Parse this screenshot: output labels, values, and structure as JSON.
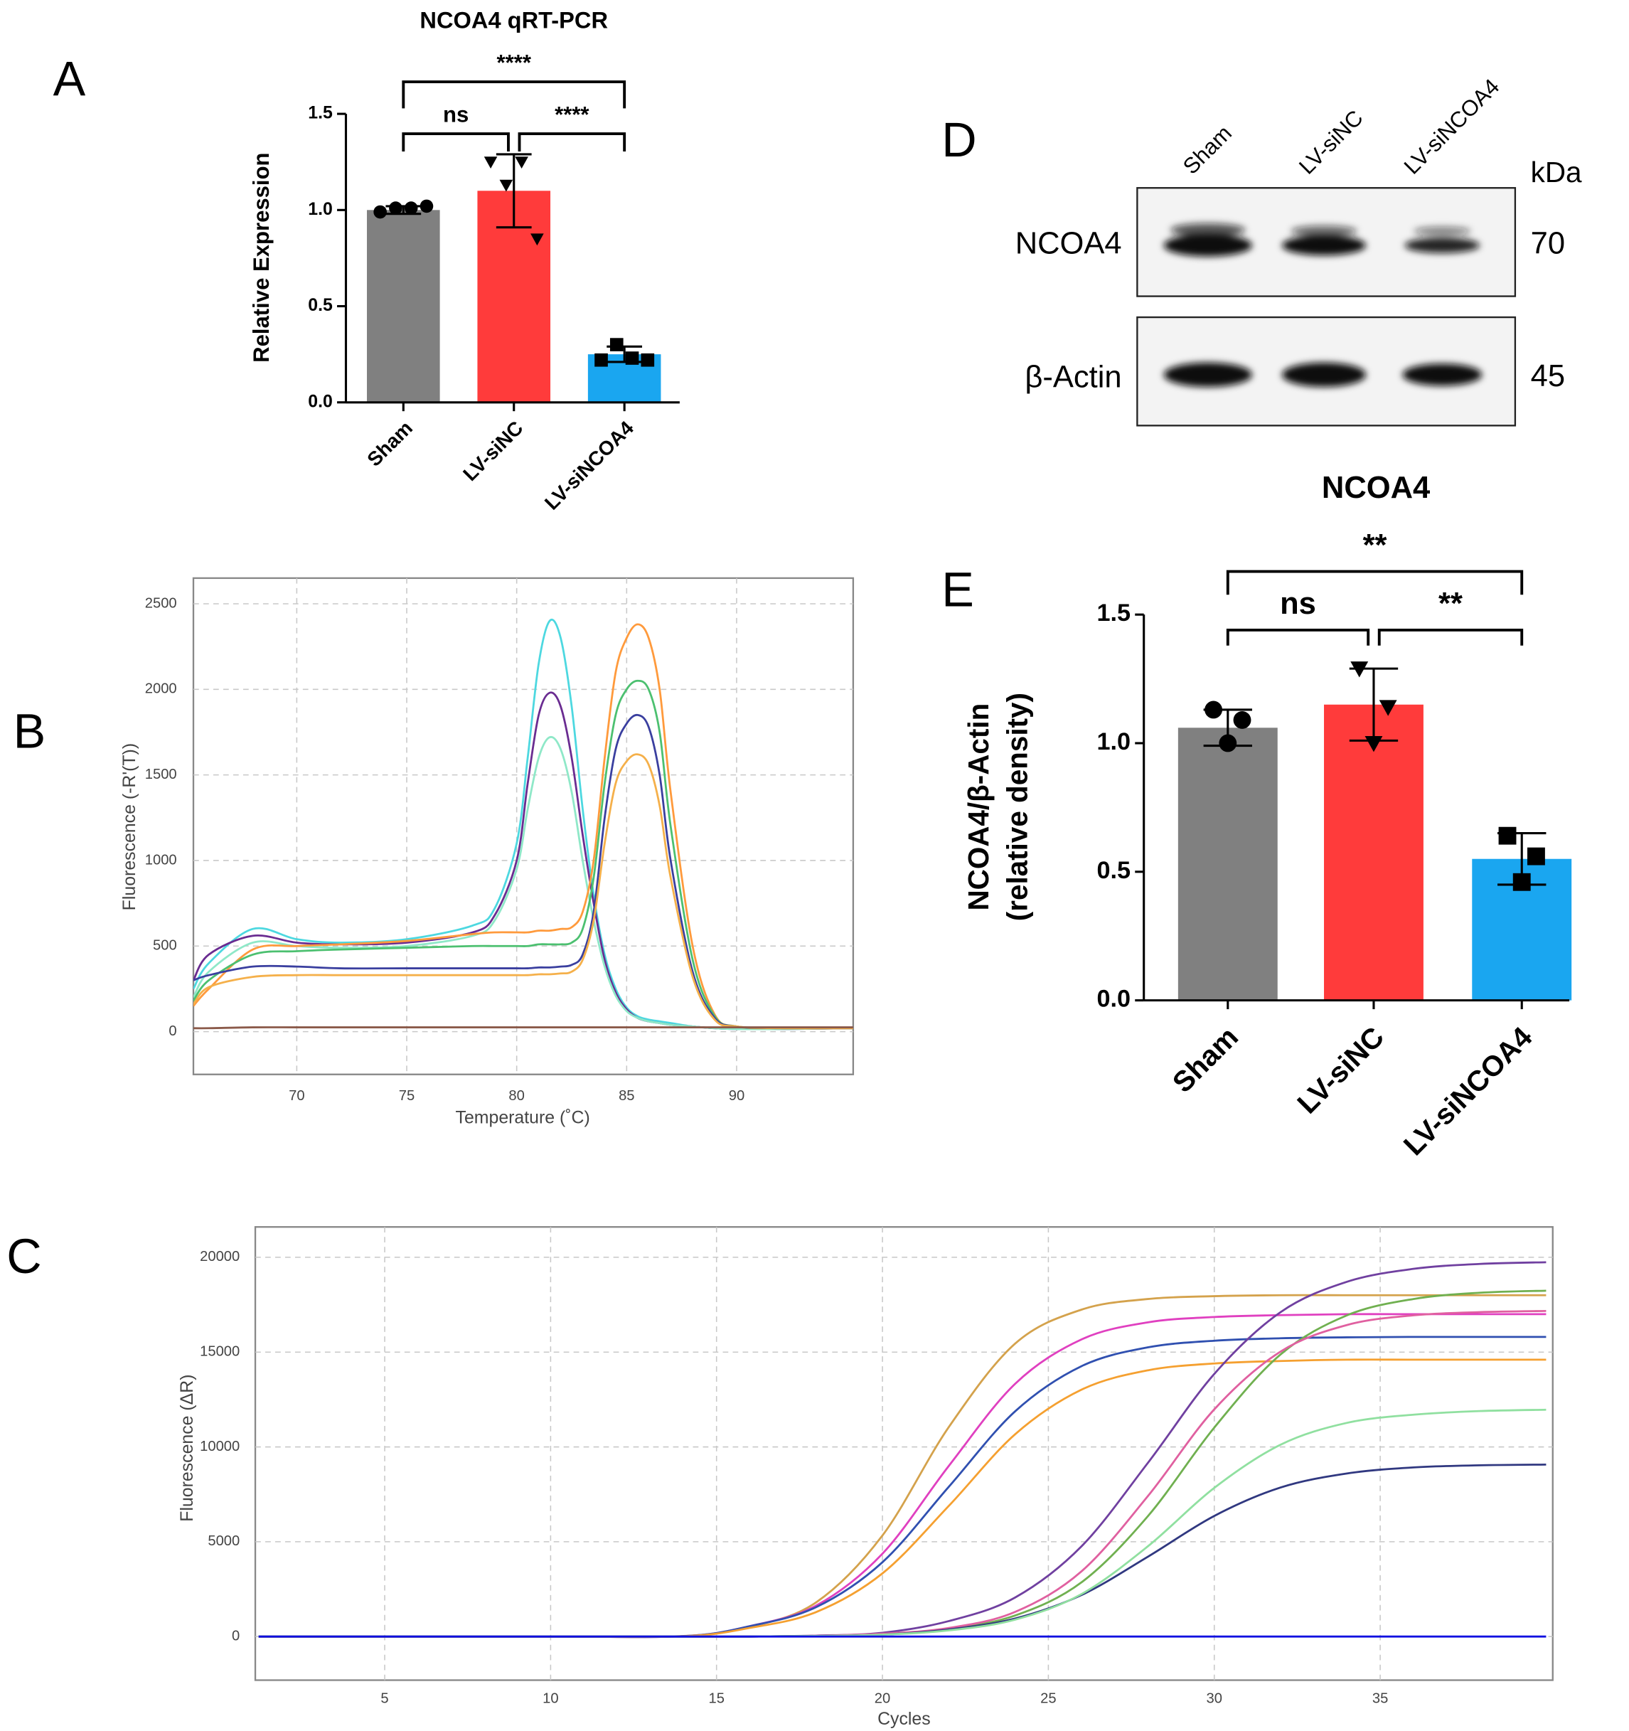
{
  "chart_data": [
    {
      "label": "A",
      "type": "bar",
      "title": "NCOA4 qRT-PCR",
      "ylabel": [
        "Relative Expression"
      ],
      "categories": [
        "Sham",
        "LV-siNC",
        "LV-siNCOA4"
      ],
      "values": [
        1.0,
        1.1,
        0.25
      ],
      "errors": [
        0.02,
        0.19,
        0.04
      ],
      "points": [
        [
          0.99,
          1.01,
          1.01,
          1.02
        ],
        [
          1.25,
          1.13,
          1.25,
          0.85
        ],
        [
          0.22,
          0.3,
          0.23,
          0.22
        ]
      ],
      "colors": [
        "#808080",
        "#ff3b3b",
        "#1aa6f0"
      ],
      "markers": [
        "circle",
        "triangle-down",
        "square"
      ],
      "ylim": [
        0,
        1.5
      ],
      "yticks": [
        {
          "value": 0,
          "label": "0.0"
        },
        {
          "value": 0.5,
          "label": "0.5"
        },
        {
          "value": 1,
          "label": "1.0"
        },
        {
          "value": 1.5,
          "label": "1.5"
        }
      ],
      "brackets": [
        {
          "text": "ns",
          "from": 0,
          "to": 1
        },
        {
          "text": "****",
          "from": 1,
          "to": 2
        },
        {
          "text": "****",
          "from": 0,
          "to": 2
        }
      ]
    },
    {
      "label": "B",
      "type": "line",
      "xlabel": "Temperature (˚C)",
      "ylabel": "Fluorescence (-R'(T))",
      "x": [
        65.3,
        66,
        68,
        70,
        72,
        75,
        78,
        79,
        80,
        80.5,
        81,
        81.5,
        82,
        82.5,
        83,
        83.5,
        84,
        84.5,
        85,
        85.5,
        86,
        86.5,
        87,
        88,
        89,
        90,
        92,
        95.3
      ],
      "series": [
        {
          "color": "#4dd8e0",
          "values": [
            250,
            400,
            600,
            540,
            520,
            540,
            620,
            720,
            1100,
            1600,
            2150,
            2400,
            2300,
            1900,
            1300,
            800,
            450,
            250,
            140,
            90,
            70,
            60,
            50,
            30,
            20,
            15,
            15,
            20
          ]
        },
        {
          "color": "#6a2c91",
          "values": [
            300,
            450,
            560,
            520,
            510,
            520,
            580,
            680,
            1000,
            1450,
            1850,
            1980,
            1900,
            1600,
            1150,
            750,
            420,
            230,
            130,
            80,
            60,
            50,
            40,
            30,
            20,
            15,
            15,
            20
          ]
        },
        {
          "color": "#8fe8c8",
          "values": [
            200,
            350,
            520,
            500,
            490,
            500,
            560,
            650,
            950,
            1300,
            1600,
            1720,
            1650,
            1400,
            1000,
            650,
            380,
            210,
            120,
            80,
            60,
            50,
            40,
            30,
            20,
            15,
            15,
            20
          ]
        },
        {
          "color": "#ff9a3c",
          "values": [
            150,
            250,
            480,
            500,
            510,
            530,
            570,
            580,
            580,
            580,
            590,
            590,
            600,
            610,
            700,
            1000,
            1600,
            2100,
            2300,
            2380,
            2300,
            2000,
            1400,
            500,
            100,
            30,
            20,
            20
          ]
        },
        {
          "color": "#4cc070",
          "values": [
            180,
            300,
            450,
            470,
            480,
            490,
            500,
            500,
            500,
            500,
            510,
            510,
            510,
            520,
            600,
            900,
            1450,
            1850,
            2000,
            2050,
            2000,
            1750,
            1200,
            420,
            90,
            30,
            20,
            20
          ]
        },
        {
          "color": "#3a3f9f",
          "values": [
            300,
            330,
            380,
            380,
            370,
            370,
            370,
            370,
            370,
            370,
            375,
            375,
            380,
            390,
            450,
            700,
            1250,
            1650,
            1800,
            1850,
            1780,
            1500,
            1000,
            350,
            80,
            30,
            20,
            20
          ]
        },
        {
          "color": "#f5b04a",
          "values": [
            160,
            260,
            320,
            330,
            330,
            330,
            330,
            330,
            330,
            330,
            335,
            335,
            340,
            350,
            420,
            650,
            1100,
            1450,
            1580,
            1620,
            1560,
            1320,
            900,
            320,
            70,
            30,
            20,
            20
          ]
        },
        {
          "color": "#8b5a4a",
          "values": [
            20,
            20,
            25,
            25,
            25,
            25,
            25,
            25,
            25,
            25,
            25,
            25,
            25,
            25,
            25,
            25,
            25,
            25,
            25,
            25,
            25,
            25,
            25,
            25,
            25,
            25,
            25,
            25
          ]
        }
      ],
      "xlim": [
        65.3,
        95.3
      ],
      "xticks": [
        70,
        75,
        80,
        85,
        90
      ],
      "ylim": [
        -250,
        2650
      ],
      "yticks": [
        0,
        500,
        1000,
        1500,
        2000,
        2500
      ],
      "grid": true
    },
    {
      "label": "C",
      "type": "line",
      "xlabel": "Cycles",
      "ylabel": "Fluorescence (ΔR)",
      "x": [
        1.2,
        5,
        10,
        14,
        16,
        18,
        20,
        22,
        24,
        26,
        28,
        30,
        32,
        34,
        36,
        38,
        40
      ],
      "series": [
        {
          "color": "#d4a24c",
          "values": [
            0,
            0,
            0,
            30,
            510,
            1800,
            5330,
            11050,
            15450,
            17240,
            17800,
            17950,
            18000,
            18000,
            18000,
            18000,
            18000
          ]
        },
        {
          "color": "#e040c0",
          "values": [
            0,
            0,
            0,
            20,
            548,
            1630,
            4370,
            9000,
            13330,
            15670,
            16570,
            16850,
            16950,
            17000,
            17000,
            17000,
            17000
          ]
        },
        {
          "color": "#3050b0",
          "values": [
            0,
            0,
            0,
            20,
            545,
            1550,
            3920,
            7900,
            11880,
            14260,
            15250,
            15600,
            15730,
            15780,
            15800,
            15800,
            15800
          ]
        },
        {
          "color": "#f5a030",
          "values": [
            0,
            0,
            0,
            15,
            455,
            1290,
            3330,
            6890,
            10670,
            13020,
            14040,
            14400,
            14530,
            14600,
            14600,
            14600,
            14600
          ]
        },
        {
          "color": "#7040a0",
          "values": [
            0,
            0,
            0,
            0,
            0,
            50,
            200,
            815,
            2060,
            4760,
            9160,
            13850,
            17110,
            18710,
            19390,
            19650,
            19740
          ]
        },
        {
          "color": "#70b050",
          "values": [
            0,
            0,
            0,
            0,
            0,
            30,
            120,
            400,
            1110,
            2860,
            6350,
            11020,
            14880,
            16940,
            17800,
            18130,
            18240
          ]
        },
        {
          "color": "#e060a0",
          "values": [
            0,
            0,
            0,
            0,
            0,
            40,
            150,
            450,
            1300,
            3440,
            7410,
            11980,
            15030,
            16430,
            16940,
            17110,
            17170
          ]
        },
        {
          "color": "#303880",
          "values": [
            0,
            0,
            0,
            0,
            0,
            30,
            100,
            375,
            950,
            2190,
            4210,
            6360,
            7860,
            8600,
            8920,
            9030,
            9070
          ]
        },
        {
          "color": "#90e0a0",
          "values": [
            0,
            0,
            0,
            0,
            0,
            30,
            100,
            325,
            890,
            2240,
            4760,
            7840,
            10120,
            11270,
            11700,
            11890,
            11960
          ]
        },
        {
          "color": "#1010e0",
          "values": [
            0,
            0,
            0,
            0,
            0,
            0,
            0,
            0,
            0,
            0,
            0,
            0,
            0,
            0,
            0,
            0,
            0
          ]
        }
      ],
      "xlim": [
        1.1,
        40.2
      ],
      "xticks": [
        5,
        10,
        15,
        20,
        25,
        30,
        35
      ],
      "ylim": [
        -2300,
        21600
      ],
      "yticks": [
        0,
        5000,
        10000,
        15000,
        20000
      ],
      "grid": true
    },
    {
      "label": "E",
      "type": "bar",
      "title": "NCOA4",
      "ylabel": [
        "NCOA4/β-Actin",
        "(relative density)"
      ],
      "categories": [
        "Sham",
        "LV-siNC",
        "LV-siNCOA4"
      ],
      "values": [
        1.06,
        1.15,
        0.55
      ],
      "errors": [
        0.07,
        0.14,
        0.1
      ],
      "points": [
        [
          1.13,
          1.0,
          1.09
        ],
        [
          1.29,
          1.0,
          1.14
        ],
        [
          0.64,
          0.46,
          0.56
        ]
      ],
      "colors": [
        "#808080",
        "#ff3b3b",
        "#1aa6f0"
      ],
      "markers": [
        "circle",
        "triangle-down",
        "square"
      ],
      "ylim": [
        0,
        1.5
      ],
      "yticks": [
        {
          "value": 0,
          "label": "0.0"
        },
        {
          "value": 0.5,
          "label": "0.5"
        },
        {
          "value": 1,
          "label": "1.0"
        },
        {
          "value": 1.5,
          "label": "1.5"
        }
      ],
      "brackets": [
        {
          "text": "ns",
          "from": 0,
          "to": 1
        },
        {
          "text": "**",
          "from": 1,
          "to": 2
        },
        {
          "text": "**",
          "from": 0,
          "to": 2
        }
      ]
    }
  ],
  "blot": {
    "label": "D",
    "lanes": [
      "Sham",
      "LV-siNC",
      "LV-siNCOA4"
    ],
    "unit": "kDa",
    "rows": [
      {
        "name": "NCOA4",
        "size": 70
      },
      {
        "name": "β-Actin",
        "size": 45
      }
    ]
  }
}
